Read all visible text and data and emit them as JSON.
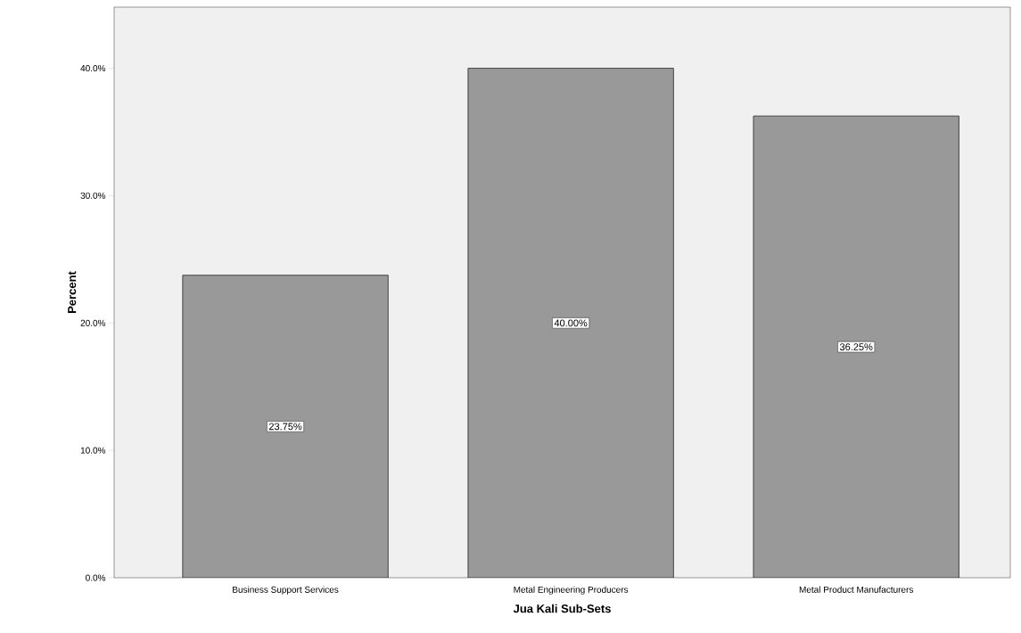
{
  "chart_data": {
    "type": "bar",
    "xlabel": "Jua Kali Sub-Sets",
    "ylabel": "Percent",
    "categories": [
      "Business Support Services",
      "Metal Engineering Producers",
      "Metal Product Manufacturers"
    ],
    "values": [
      23.75,
      40.0,
      36.25
    ],
    "value_labels": [
      "23.75%",
      "40.00%",
      "36.25%"
    ],
    "color": "#999999",
    "ylim": [
      0,
      44.8
    ],
    "yticks": [
      {
        "value": 0,
        "label": "0.0%"
      },
      {
        "value": 10,
        "label": "10.0%"
      },
      {
        "value": 20,
        "label": "20.0%"
      },
      {
        "value": 30,
        "label": "30.0%"
      },
      {
        "value": 40,
        "label": "40.0%"
      }
    ],
    "grid": false
  }
}
